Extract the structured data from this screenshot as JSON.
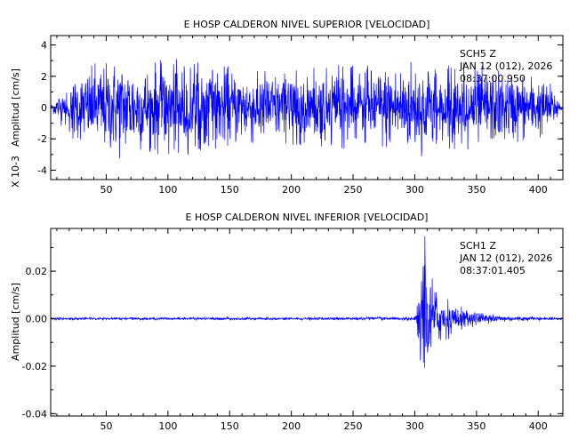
{
  "chart_data": [
    {
      "type": "line",
      "title": "E HOSP CALDERON NIVEL SUPERIOR [VELOCIDAD]",
      "ylabel": "Amplitud [cm/s]",
      "yscale_label": "X 10-3",
      "xlim": [
        5,
        420
      ],
      "ylim": [
        -4.6,
        4.6
      ],
      "x_ticks": [
        "50",
        "100",
        "150",
        "200",
        "250",
        "300",
        "350",
        "400"
      ],
      "y_ticks": [
        "4",
        "2",
        "0",
        "-2",
        "-4"
      ],
      "grid": false,
      "station": {
        "line1": "SCH5   Z",
        "line2": "JAN 12 (012), 2026",
        "line3": "08:37:00.950"
      },
      "color": "#0000ff",
      "series": [
        {
          "x": [
            5,
            20,
            40,
            60,
            80,
            100,
            120,
            140,
            160,
            180,
            200,
            220,
            240,
            260,
            280,
            300,
            320,
            340,
            360,
            380,
            400,
            410,
            420
          ],
          "envelope": [
            0.2,
            2.0,
            2.8,
            3.4,
            2.9,
            3.2,
            3.0,
            2.7,
            2.6,
            2.5,
            2.4,
            2.6,
            2.8,
            2.7,
            2.9,
            3.3,
            2.7,
            2.9,
            2.6,
            2.4,
            2.1,
            1.6,
            0.3
          ]
        }
      ]
    },
    {
      "type": "line",
      "title": "E HOSP CALDERON NIVEL INFERIOR [VELOCIDAD]",
      "ylabel": "Amplitud [cm/s]",
      "xlim": [
        5,
        420
      ],
      "ylim": [
        -0.041,
        0.038
      ],
      "x_ticks": [
        "50",
        "100",
        "150",
        "200",
        "250",
        "300",
        "350",
        "400"
      ],
      "y_ticks": [
        "0.02",
        "0.00",
        "-0.02",
        "-0.04"
      ],
      "grid": false,
      "station": {
        "line1": "SCH1   Z",
        "line2": "JAN 12 (012), 2026",
        "line3": "08:37:01.405"
      },
      "color": "#0000ff",
      "series": [
        {
          "x": [
            5,
            100,
            200,
            290,
            300,
            303,
            306,
            308,
            312,
            320,
            335,
            355,
            380,
            420
          ],
          "envelope": [
            0.0006,
            0.0006,
            0.0006,
            0.0008,
            0.001,
            0.012,
            0.03,
            0.037,
            0.022,
            0.012,
            0.006,
            0.0025,
            0.0012,
            0.0006
          ]
        }
      ]
    }
  ]
}
